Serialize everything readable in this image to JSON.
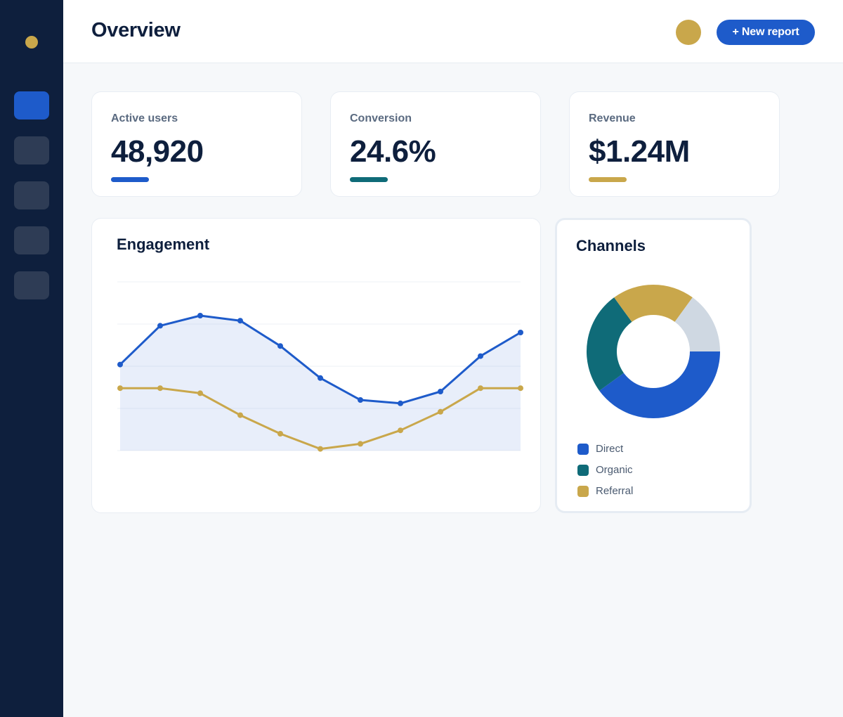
{
  "sidebar": {
    "nav_items": [
      {
        "icon": "dashboard-icon",
        "active": true
      },
      {
        "icon": "nav-item-icon",
        "active": false
      },
      {
        "icon": "nav-item-icon",
        "active": false
      },
      {
        "icon": "nav-item-icon",
        "active": false
      },
      {
        "icon": "nav-item-icon",
        "active": false
      }
    ]
  },
  "header": {
    "title": "Overview",
    "new_report_label": "+ New report"
  },
  "kpis": [
    {
      "label": "Active users",
      "value": "48,920",
      "accent": "#1e5bca"
    },
    {
      "label": "Conversion",
      "value": "24.6%",
      "accent": "#0f6b78"
    },
    {
      "label": "Revenue",
      "value": "$1.24M",
      "accent": "#c9a74b"
    }
  ],
  "colors": {
    "brand_blue": "#1e5bca",
    "teal": "#0f6b78",
    "gold": "#c9a74b",
    "sidebar_bg": "#0e1f3d",
    "light_gray": "#cfd8e2"
  },
  "engagement": {
    "title": "Engagement"
  },
  "channels": {
    "title": "Channels",
    "legend": [
      {
        "label": "Direct",
        "color": "#1e5bca"
      },
      {
        "label": "Organic",
        "color": "#0f6b78"
      },
      {
        "label": "Referral",
        "color": "#c9a74b"
      }
    ]
  },
  "chart_data": [
    {
      "type": "line",
      "title": "Engagement",
      "x": [
        1,
        2,
        3,
        4,
        5,
        6,
        7,
        8,
        9,
        10,
        11
      ],
      "ylim": [
        0,
        100
      ],
      "grid": true,
      "series": [
        {
          "color": "#1e5bca",
          "filled": true,
          "values": [
            51,
            74,
            80,
            77,
            62,
            43,
            30,
            28,
            35,
            56,
            70
          ]
        },
        {
          "color": "#c9a74b",
          "filled": false,
          "values": [
            37,
            37,
            34,
            21,
            10,
            1,
            4,
            12,
            23,
            37,
            37
          ]
        }
      ]
    },
    {
      "type": "pie",
      "title": "Channels",
      "donut": true,
      "slices": [
        {
          "label": "Direct",
          "value": 40,
          "color": "#1e5bca"
        },
        {
          "label": "Organic",
          "value": 25,
          "color": "#0f6b78"
        },
        {
          "label": "Referral",
          "value": 20,
          "color": "#c9a74b"
        },
        {
          "label": "",
          "value": 15,
          "color": "#cfd8e2"
        }
      ]
    }
  ]
}
